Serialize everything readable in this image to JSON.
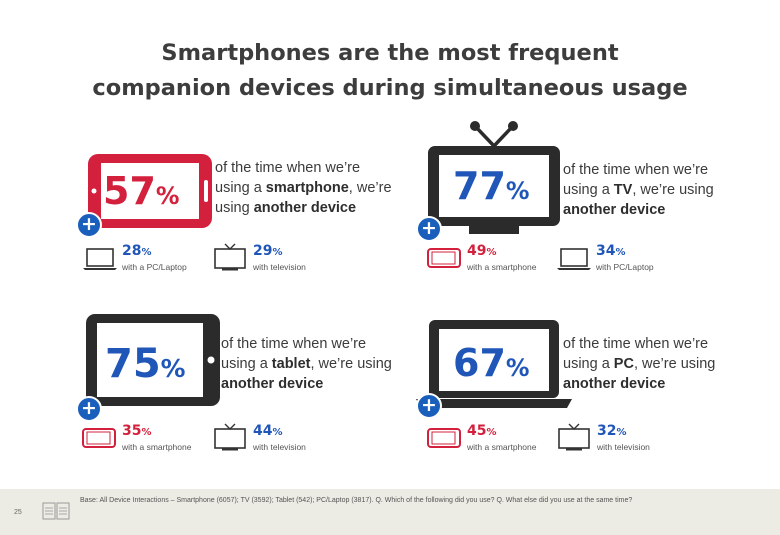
{
  "title": {
    "line1": "Smartphones are the most frequent",
    "line2": "companion devices during simultaneous usage"
  },
  "colors": {
    "smartphone_red": "#d3203d",
    "accent_blue": "#1f56b8",
    "device_dark": "#2b2b2b",
    "footer_bg": "#ecebe4"
  },
  "quadrants": [
    {
      "device": "smartphone",
      "device_icon": "smartphone-icon",
      "value": "57",
      "pct": "%",
      "desc_line1": "of the time when we’re",
      "desc_line2_pre": "using a ",
      "desc_device": "smartphone",
      "desc_line2_post": ", we’re",
      "desc_line3_pre": "using ",
      "desc_line3_bold": "another device",
      "stats": [
        {
          "icon": "laptop-icon",
          "value": "28",
          "pct": "%",
          "label": "with a PC/Laptop"
        },
        {
          "icon": "television-icon",
          "value": "29",
          "pct": "%",
          "label": "with television"
        }
      ]
    },
    {
      "device": "tv",
      "device_icon": "television-icon",
      "value": "77",
      "pct": "%",
      "desc_line1": "of the time when we’re",
      "desc_line2_pre": "using a ",
      "desc_device": "TV",
      "desc_line2_post": ", we’re using",
      "desc_line3_pre": "",
      "desc_line3_bold": "another device",
      "stats": [
        {
          "icon": "smartphone-icon",
          "value": "49",
          "pct": "%",
          "label": "with a smartphone"
        },
        {
          "icon": "laptop-icon",
          "value": "34",
          "pct": "%",
          "label": "with PC/Laptop"
        }
      ]
    },
    {
      "device": "tablet",
      "device_icon": "tablet-icon",
      "value": "75",
      "pct": "%",
      "desc_line1": "of the time when we’re",
      "desc_line2_pre": "using a ",
      "desc_device": "tablet",
      "desc_line2_post": ", we’re using",
      "desc_line3_pre": "",
      "desc_line3_bold": "another device",
      "stats": [
        {
          "icon": "smartphone-icon",
          "value": "35",
          "pct": "%",
          "label": "with a smartphone"
        },
        {
          "icon": "television-icon",
          "value": "44",
          "pct": "%",
          "label": "with television"
        }
      ]
    },
    {
      "device": "pc",
      "device_icon": "laptop-icon",
      "value": "67",
      "pct": "%",
      "desc_line1": "of the time when we’re",
      "desc_line2_pre": "using a ",
      "desc_device": "PC",
      "desc_line2_post": ", we’re using",
      "desc_line3_pre": "",
      "desc_line3_bold": "another device",
      "stats": [
        {
          "icon": "smartphone-icon",
          "value": "45",
          "pct": "%",
          "label": "with a smartphone"
        },
        {
          "icon": "television-icon",
          "value": "32",
          "pct": "%",
          "label": "with television"
        }
      ]
    }
  ],
  "footer": {
    "page_number": "25",
    "base_text": "Base: All Device Interactions – Smartphone (6057); TV (3592); Tablet (542); PC/Laptop (3817). Q. Which of the following did you use? Q. What else did you use at the same time?"
  }
}
